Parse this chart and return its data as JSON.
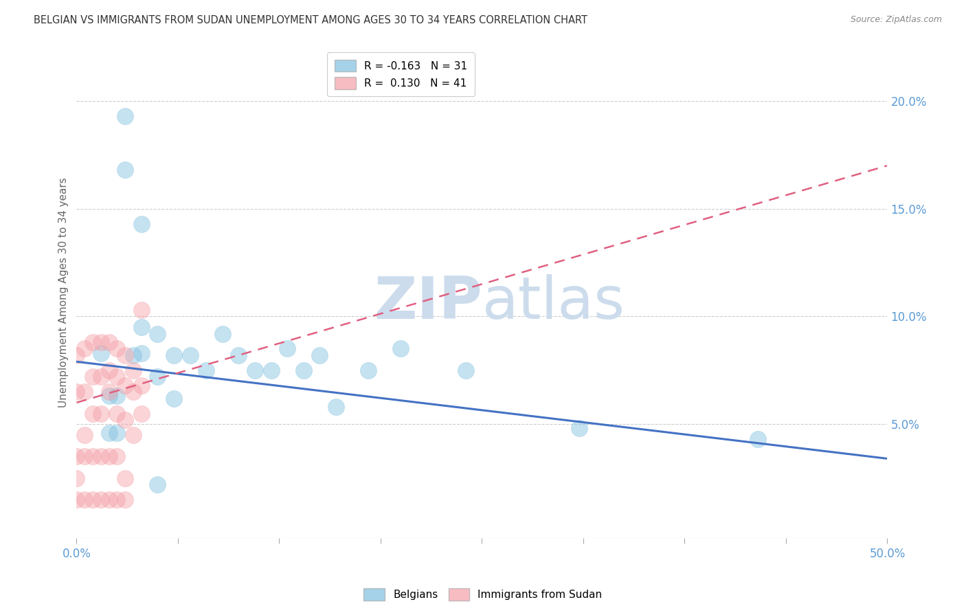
{
  "title": "BELGIAN VS IMMIGRANTS FROM SUDAN UNEMPLOYMENT AMONG AGES 30 TO 34 YEARS CORRELATION CHART",
  "source": "Source: ZipAtlas.com",
  "ylabel": "Unemployment Among Ages 30 to 34 years",
  "xlim": [
    0,
    0.5
  ],
  "ylim": [
    -0.003,
    0.225
  ],
  "xticks": [
    0.0,
    0.0625,
    0.125,
    0.1875,
    0.25,
    0.3125,
    0.375,
    0.4375,
    0.5
  ],
  "xtick_labels_show": [
    "0.0%",
    "",
    "",
    "",
    "",
    "",
    "",
    "",
    "50.0%"
  ],
  "yticks_right": [
    0.05,
    0.1,
    0.15,
    0.2
  ],
  "ytick_labels_right": [
    "5.0%",
    "10.0%",
    "15.0%",
    "20.0%"
  ],
  "legend_r1": "R = -0.163",
  "legend_n1": "N = 31",
  "legend_r2": "R =  0.130",
  "legend_n2": "N = 41",
  "label_belgians": "Belgians",
  "label_immigrants": "Immigrants from Sudan",
  "color_blue": "#7fbfdf",
  "color_pink": "#f4a0a8",
  "color_trend_blue": "#4472c4",
  "color_trend_pink": "#e06080",
  "watermark_color": "#ccdcec",
  "belgians_x": [
    0.03,
    0.03,
    0.04,
    0.04,
    0.04,
    0.05,
    0.05,
    0.06,
    0.06,
    0.07,
    0.08,
    0.09,
    0.1,
    0.11,
    0.12,
    0.13,
    0.14,
    0.15,
    0.16,
    0.18,
    0.2,
    0.24,
    0.31,
    0.42,
    0.015,
    0.02,
    0.025,
    0.02,
    0.025,
    0.035,
    0.05
  ],
  "belgians_y": [
    0.193,
    0.168,
    0.143,
    0.095,
    0.083,
    0.092,
    0.072,
    0.082,
    0.062,
    0.082,
    0.075,
    0.092,
    0.082,
    0.075,
    0.075,
    0.085,
    0.075,
    0.082,
    0.058,
    0.075,
    0.085,
    0.075,
    0.048,
    0.043,
    0.083,
    0.063,
    0.063,
    0.046,
    0.046,
    0.082,
    0.022
  ],
  "immigrants_x": [
    0.0,
    0.0,
    0.005,
    0.005,
    0.01,
    0.01,
    0.015,
    0.015,
    0.02,
    0.02,
    0.025,
    0.025,
    0.03,
    0.03,
    0.035,
    0.035,
    0.04,
    0.04,
    0.04,
    0.005,
    0.01,
    0.015,
    0.02,
    0.025,
    0.03,
    0.035,
    0.0,
    0.0,
    0.005,
    0.01,
    0.015,
    0.02,
    0.025,
    0.03,
    0.0,
    0.005,
    0.01,
    0.015,
    0.02,
    0.025,
    0.03
  ],
  "immigrants_y": [
    0.082,
    0.065,
    0.085,
    0.065,
    0.088,
    0.072,
    0.088,
    0.072,
    0.088,
    0.075,
    0.085,
    0.072,
    0.082,
    0.068,
    0.075,
    0.065,
    0.068,
    0.055,
    0.103,
    0.045,
    0.055,
    0.055,
    0.065,
    0.055,
    0.052,
    0.045,
    0.035,
    0.025,
    0.035,
    0.035,
    0.035,
    0.035,
    0.035,
    0.025,
    0.015,
    0.015,
    0.015,
    0.015,
    0.015,
    0.015,
    0.015
  ],
  "blue_trend_start_x": 0.0,
  "blue_trend_start_y": 0.079,
  "blue_trend_end_x": 0.5,
  "blue_trend_end_y": 0.034,
  "pink_trend_start_x": 0.0,
  "pink_trend_start_y": 0.058,
  "pink_trend_end_x": 0.08,
  "pink_trend_end_y": 0.068
}
